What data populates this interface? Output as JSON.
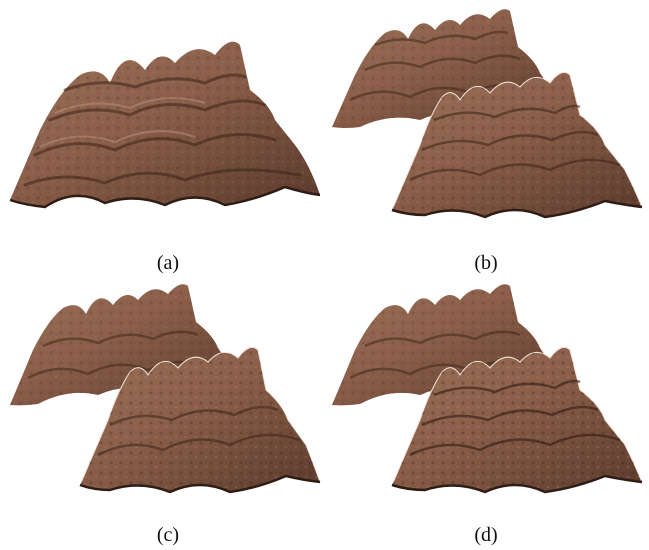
{
  "figure": {
    "panels": [
      {
        "id": "a",
        "caption": "(a)",
        "surfaces": 1
      },
      {
        "id": "b",
        "caption": "(b)",
        "surfaces": 2
      },
      {
        "id": "c",
        "caption": "(c)",
        "surfaces": 2
      },
      {
        "id": "d",
        "caption": "(d)",
        "surfaces": 2
      }
    ],
    "colors": {
      "surface_light": "#a67b62",
      "surface_mid": "#8a5e49",
      "surface_dark": "#4d3126",
      "crease": "#2e1c15",
      "background": "#ffffff"
    }
  }
}
